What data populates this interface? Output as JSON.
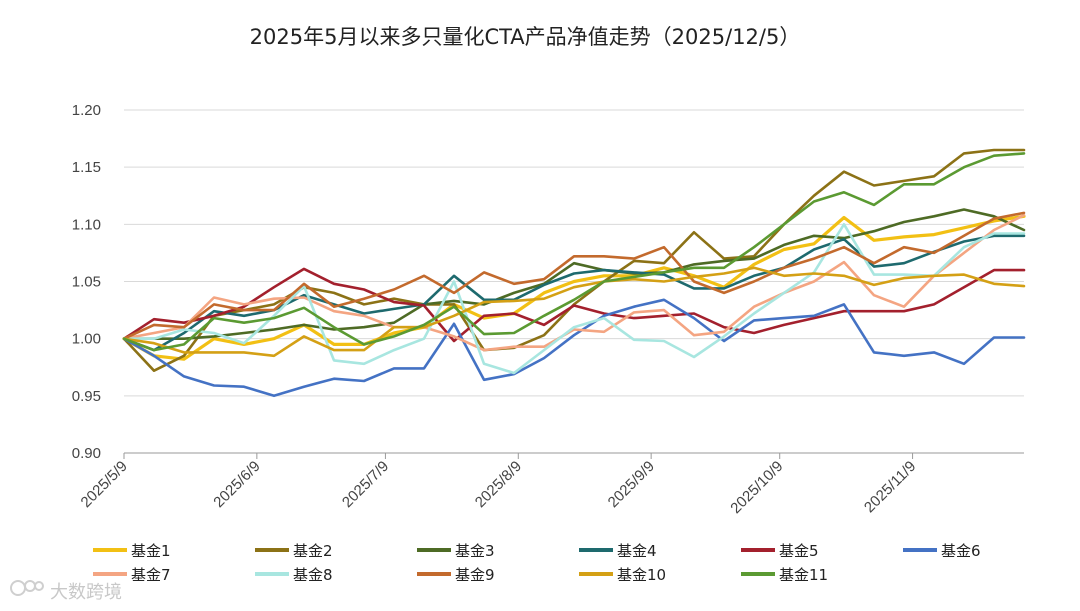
{
  "watermark": "大数跨境",
  "chart_data": {
    "type": "line",
    "title": "2025年5月以来多只量化CTA产品净值走势（2025/12/5）",
    "xlabel": "",
    "ylabel": "",
    "ylim": [
      0.9,
      1.2
    ],
    "yticks": [
      0.9,
      0.95,
      1.0,
      1.05,
      1.1,
      1.15,
      1.2
    ],
    "ytick_labels": [
      "0.90",
      "0.95",
      "1.00",
      "1.05",
      "1.10",
      "1.15",
      "1.20"
    ],
    "xlim": [
      "2025-05-09",
      "2025-12-05"
    ],
    "xticks": [
      "2025-05-09",
      "2025-06-09",
      "2025-07-09",
      "2025-08-09",
      "2025-09-09",
      "2025-10-09",
      "2025-11-09"
    ],
    "xtick_labels": [
      "2025/5/9",
      "2025/6/9",
      "2025/7/9",
      "2025/8/9",
      "2025/9/9",
      "2025/10/9",
      "2025/11/9"
    ],
    "grid": "horizontal",
    "legend_position": "bottom",
    "x": [
      "2025-05-09",
      "2025-05-16",
      "2025-05-23",
      "2025-05-30",
      "2025-06-06",
      "2025-06-13",
      "2025-06-20",
      "2025-06-27",
      "2025-07-04",
      "2025-07-11",
      "2025-07-18",
      "2025-07-25",
      "2025-08-01",
      "2025-08-08",
      "2025-08-15",
      "2025-08-22",
      "2025-08-29",
      "2025-09-05",
      "2025-09-12",
      "2025-09-19",
      "2025-09-26",
      "2025-10-03",
      "2025-10-10",
      "2025-10-17",
      "2025-10-24",
      "2025-10-31",
      "2025-11-07",
      "2025-11-14",
      "2025-11-21",
      "2025-11-28",
      "2025-12-05"
    ],
    "series": [
      {
        "name": "基金1",
        "color": "#F2C014",
        "width": 3.2,
        "values": [
          1.0,
          0.985,
          0.982,
          1.0,
          0.995,
          1.0,
          1.012,
          0.995,
          0.995,
          1.005,
          1.01,
          1.03,
          1.018,
          1.022,
          1.04,
          1.05,
          1.055,
          1.055,
          1.062,
          1.055,
          1.045,
          1.065,
          1.078,
          1.083,
          1.106,
          1.086,
          1.089,
          1.091,
          1.097,
          1.103,
          1.107
        ]
      },
      {
        "name": "基金2",
        "color": "#8C7216",
        "width": 2.6,
        "values": [
          1.0,
          0.972,
          0.985,
          1.02,
          1.025,
          1.03,
          1.045,
          1.04,
          1.03,
          1.035,
          1.03,
          1.03,
          0.99,
          0.992,
          1.003,
          1.03,
          1.05,
          1.068,
          1.066,
          1.093,
          1.07,
          1.072,
          1.1,
          1.125,
          1.146,
          1.134,
          1.138,
          1.142,
          1.162,
          1.165,
          1.165
        ]
      },
      {
        "name": "基金3",
        "color": "#4E6B25",
        "width": 2.6,
        "values": [
          1.0,
          1.0,
          1.0,
          1.002,
          1.005,
          1.008,
          1.012,
          1.008,
          1.01,
          1.014,
          1.03,
          1.033,
          1.03,
          1.04,
          1.048,
          1.066,
          1.06,
          1.057,
          1.058,
          1.065,
          1.068,
          1.07,
          1.082,
          1.09,
          1.088,
          1.094,
          1.102,
          1.107,
          1.113,
          1.107,
          1.095
        ]
      },
      {
        "name": "基金4",
        "color": "#1E6A6E",
        "width": 2.6,
        "values": [
          1.0,
          0.99,
          1.005,
          1.024,
          1.02,
          1.025,
          1.038,
          1.03,
          1.022,
          1.026,
          1.03,
          1.055,
          1.034,
          1.034,
          1.047,
          1.057,
          1.06,
          1.058,
          1.056,
          1.044,
          1.044,
          1.055,
          1.062,
          1.078,
          1.087,
          1.063,
          1.066,
          1.076,
          1.085,
          1.09,
          1.09
        ]
      },
      {
        "name": "基金5",
        "color": "#A3202D",
        "width": 2.6,
        "values": [
          1.0,
          1.017,
          1.014,
          1.02,
          1.028,
          1.045,
          1.061,
          1.048,
          1.043,
          1.032,
          1.029,
          0.998,
          1.02,
          1.022,
          1.012,
          1.029,
          1.022,
          1.018,
          1.02,
          1.022,
          1.01,
          1.005,
          1.012,
          1.018,
          1.024,
          1.024,
          1.024,
          1.03,
          1.045,
          1.06,
          1.06
        ]
      },
      {
        "name": "基金6",
        "color": "#4472C4",
        "width": 2.6,
        "values": [
          1.0,
          0.985,
          0.967,
          0.959,
          0.958,
          0.95,
          0.958,
          0.965,
          0.963,
          0.974,
          0.974,
          1.013,
          0.964,
          0.969,
          0.983,
          1.003,
          1.02,
          1.028,
          1.034,
          1.018,
          0.998,
          1.016,
          1.018,
          1.02,
          1.03,
          0.988,
          0.985,
          0.988,
          0.978,
          1.001,
          1.001
        ]
      },
      {
        "name": "基金7",
        "color": "#F4A582",
        "width": 2.6,
        "values": [
          1.0,
          1.005,
          1.01,
          1.036,
          1.03,
          1.035,
          1.036,
          1.024,
          1.02,
          1.01,
          1.01,
          1.002,
          0.99,
          0.993,
          0.993,
          1.008,
          1.006,
          1.023,
          1.025,
          1.003,
          1.006,
          1.028,
          1.04,
          1.05,
          1.067,
          1.038,
          1.028,
          1.055,
          1.075,
          1.095,
          1.108
        ]
      },
      {
        "name": "基金8",
        "color": "#A8E6E0",
        "width": 2.6,
        "values": [
          1.0,
          1.0,
          1.008,
          1.005,
          0.996,
          1.02,
          1.046,
          0.981,
          0.978,
          0.99,
          1.0,
          1.05,
          0.978,
          0.97,
          0.99,
          1.01,
          1.018,
          0.999,
          0.998,
          0.984,
          1.002,
          1.022,
          1.04,
          1.058,
          1.1,
          1.056,
          1.056,
          1.055,
          1.08,
          1.092,
          1.092
        ]
      },
      {
        "name": "基金9",
        "color": "#C36A2D",
        "width": 2.6,
        "values": [
          1.0,
          1.012,
          1.01,
          1.03,
          1.025,
          1.025,
          1.048,
          1.028,
          1.035,
          1.043,
          1.055,
          1.04,
          1.058,
          1.048,
          1.052,
          1.072,
          1.072,
          1.07,
          1.08,
          1.05,
          1.04,
          1.05,
          1.062,
          1.07,
          1.08,
          1.066,
          1.08,
          1.075,
          1.09,
          1.105,
          1.11
        ]
      },
      {
        "name": "基金10",
        "color": "#D4A015",
        "width": 2.6,
        "values": [
          1.0,
          0.996,
          0.988,
          0.988,
          0.988,
          0.985,
          1.002,
          0.99,
          0.99,
          1.01,
          1.01,
          1.02,
          1.032,
          1.033,
          1.035,
          1.045,
          1.05,
          1.052,
          1.05,
          1.054,
          1.057,
          1.062,
          1.055,
          1.057,
          1.055,
          1.047,
          1.053,
          1.055,
          1.056,
          1.048,
          1.046
        ]
      },
      {
        "name": "基金11",
        "color": "#5B9A32",
        "width": 2.6,
        "values": [
          1.0,
          0.99,
          0.995,
          1.018,
          1.014,
          1.018,
          1.027,
          1.01,
          0.995,
          1.002,
          1.012,
          1.028,
          1.004,
          1.005,
          1.02,
          1.034,
          1.05,
          1.054,
          1.058,
          1.062,
          1.062,
          1.08,
          1.1,
          1.12,
          1.128,
          1.117,
          1.135,
          1.135,
          1.15,
          1.16,
          1.162
        ]
      }
    ]
  }
}
